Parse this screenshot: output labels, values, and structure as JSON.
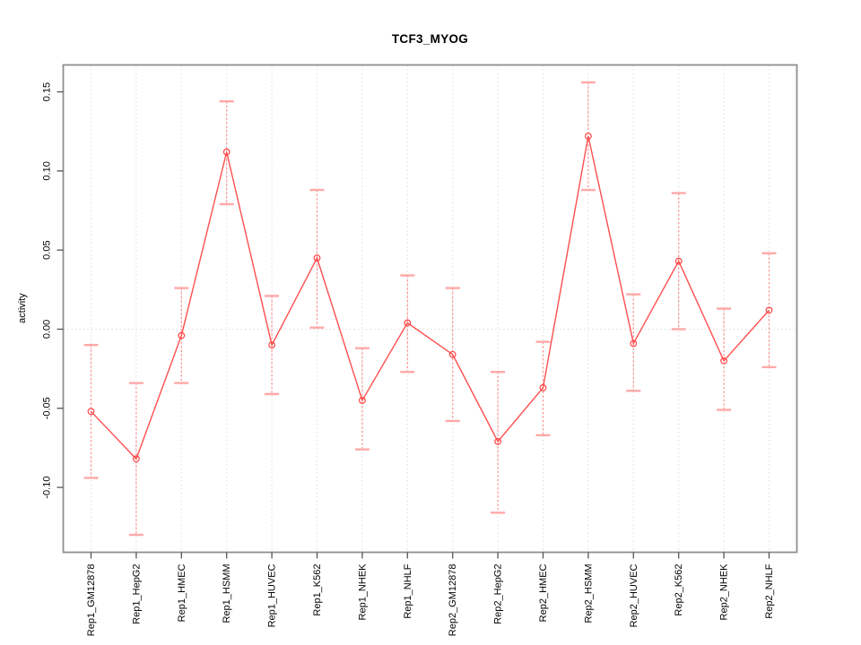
{
  "chart_data": {
    "type": "line",
    "title": "TCF3_MYOG",
    "xlabel": "",
    "ylabel": "activity",
    "legend": "none",
    "grid": "vertical dotted line at each category; horizontal dotted line at y=0",
    "ylim": [
      -0.141,
      0.167
    ],
    "yticks": [
      -0.1,
      -0.05,
      0.0,
      0.05,
      0.1,
      0.15
    ],
    "ytick_labels": [
      "-0.10",
      "-0.05",
      "0.00",
      "0.05",
      "0.10",
      "0.15"
    ],
    "categories": [
      "Rep1_GM12878",
      "Rep1_HepG2",
      "Rep1_HMEC",
      "Rep1_HSMM",
      "Rep1_HUVEC",
      "Rep1_K562",
      "Rep1_NHEK",
      "Rep1_NHLF",
      "Rep2_GM12878",
      "Rep2_HepG2",
      "Rep2_HMEC",
      "Rep2_HSMM",
      "Rep2_HUVEC",
      "Rep2_K562",
      "Rep2_NHEK",
      "Rep2_NHLF"
    ],
    "series": [
      {
        "name": "activity",
        "values": [
          -0.052,
          -0.082,
          -0.004,
          0.112,
          -0.01,
          0.045,
          -0.045,
          0.004,
          -0.016,
          -0.071,
          -0.037,
          0.122,
          -0.009,
          0.043,
          -0.02,
          0.012
        ],
        "err_low": [
          -0.094,
          -0.13,
          -0.034,
          0.079,
          -0.041,
          0.001,
          -0.076,
          -0.027,
          -0.058,
          -0.116,
          -0.067,
          0.088,
          -0.039,
          0.0,
          -0.051,
          -0.024
        ],
        "err_high": [
          -0.01,
          -0.034,
          0.026,
          0.144,
          0.021,
          0.088,
          -0.012,
          0.034,
          0.026,
          -0.027,
          -0.008,
          0.156,
          0.022,
          0.086,
          0.013,
          0.048
        ]
      }
    ]
  },
  "colors": {
    "series_line": "#ff4f4f",
    "marker_stroke": "#ff4343",
    "error_line": "#ff9292",
    "error_cap": "#ffa8a8",
    "grid": "#dcdcdc",
    "box": "#8f8f8f",
    "tick": "#555555",
    "text": "#000000",
    "background": "#ffffff"
  }
}
